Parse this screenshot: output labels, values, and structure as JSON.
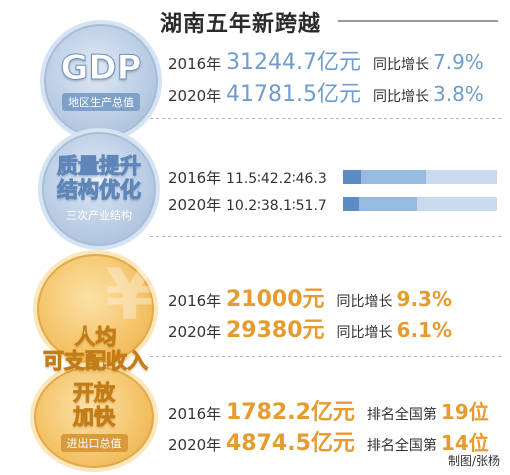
{
  "header": {
    "title": "湖南五年新跨越"
  },
  "gdp": {
    "badge": "GDP",
    "subtitle": "地区生产总值",
    "rows": [
      {
        "year": "2016年",
        "value": "31244.7亿元",
        "growth_label": "同比增长",
        "growth": "7.9%"
      },
      {
        "year": "2020年",
        "value": "41781.5亿元",
        "growth_label": "同比增长",
        "growth": "3.8%"
      }
    ]
  },
  "structure": {
    "line1": "质量提升",
    "line2": "结构优化",
    "subtitle": "三次产业结构",
    "rows": [
      {
        "year": "2016年",
        "ratio": "11.5∶42.2∶46.3",
        "shares": [
          11.5,
          42.2,
          46.3
        ]
      },
      {
        "year": "2020年",
        "ratio": "10.2∶38.1∶51.7",
        "shares": [
          10.2,
          38.1,
          51.7
        ]
      }
    ],
    "colors": [
      "#5b8cc4",
      "#97bbe0",
      "#c9daee"
    ]
  },
  "income": {
    "line1": "人均",
    "line2": "可支配收入",
    "rows": [
      {
        "year": "2016年",
        "value": "21000元",
        "growth_label": "同比增长",
        "growth": "9.3%"
      },
      {
        "year": "2020年",
        "value": "29380元",
        "growth_label": "同比增长",
        "growth": "6.1%"
      }
    ]
  },
  "trade": {
    "line1": "开放",
    "line2": "加快",
    "subtitle": "进出口总值",
    "rows": [
      {
        "year": "2016年",
        "value": "1782.2亿元",
        "rank_label": "排名全国第",
        "rank": "19",
        "rank_suffix": "位"
      },
      {
        "year": "2020年",
        "value": "4874.5亿元",
        "rank_label": "排名全国第",
        "rank": "14",
        "rank_suffix": "位"
      }
    ]
  },
  "credit": "制图/张杨"
}
